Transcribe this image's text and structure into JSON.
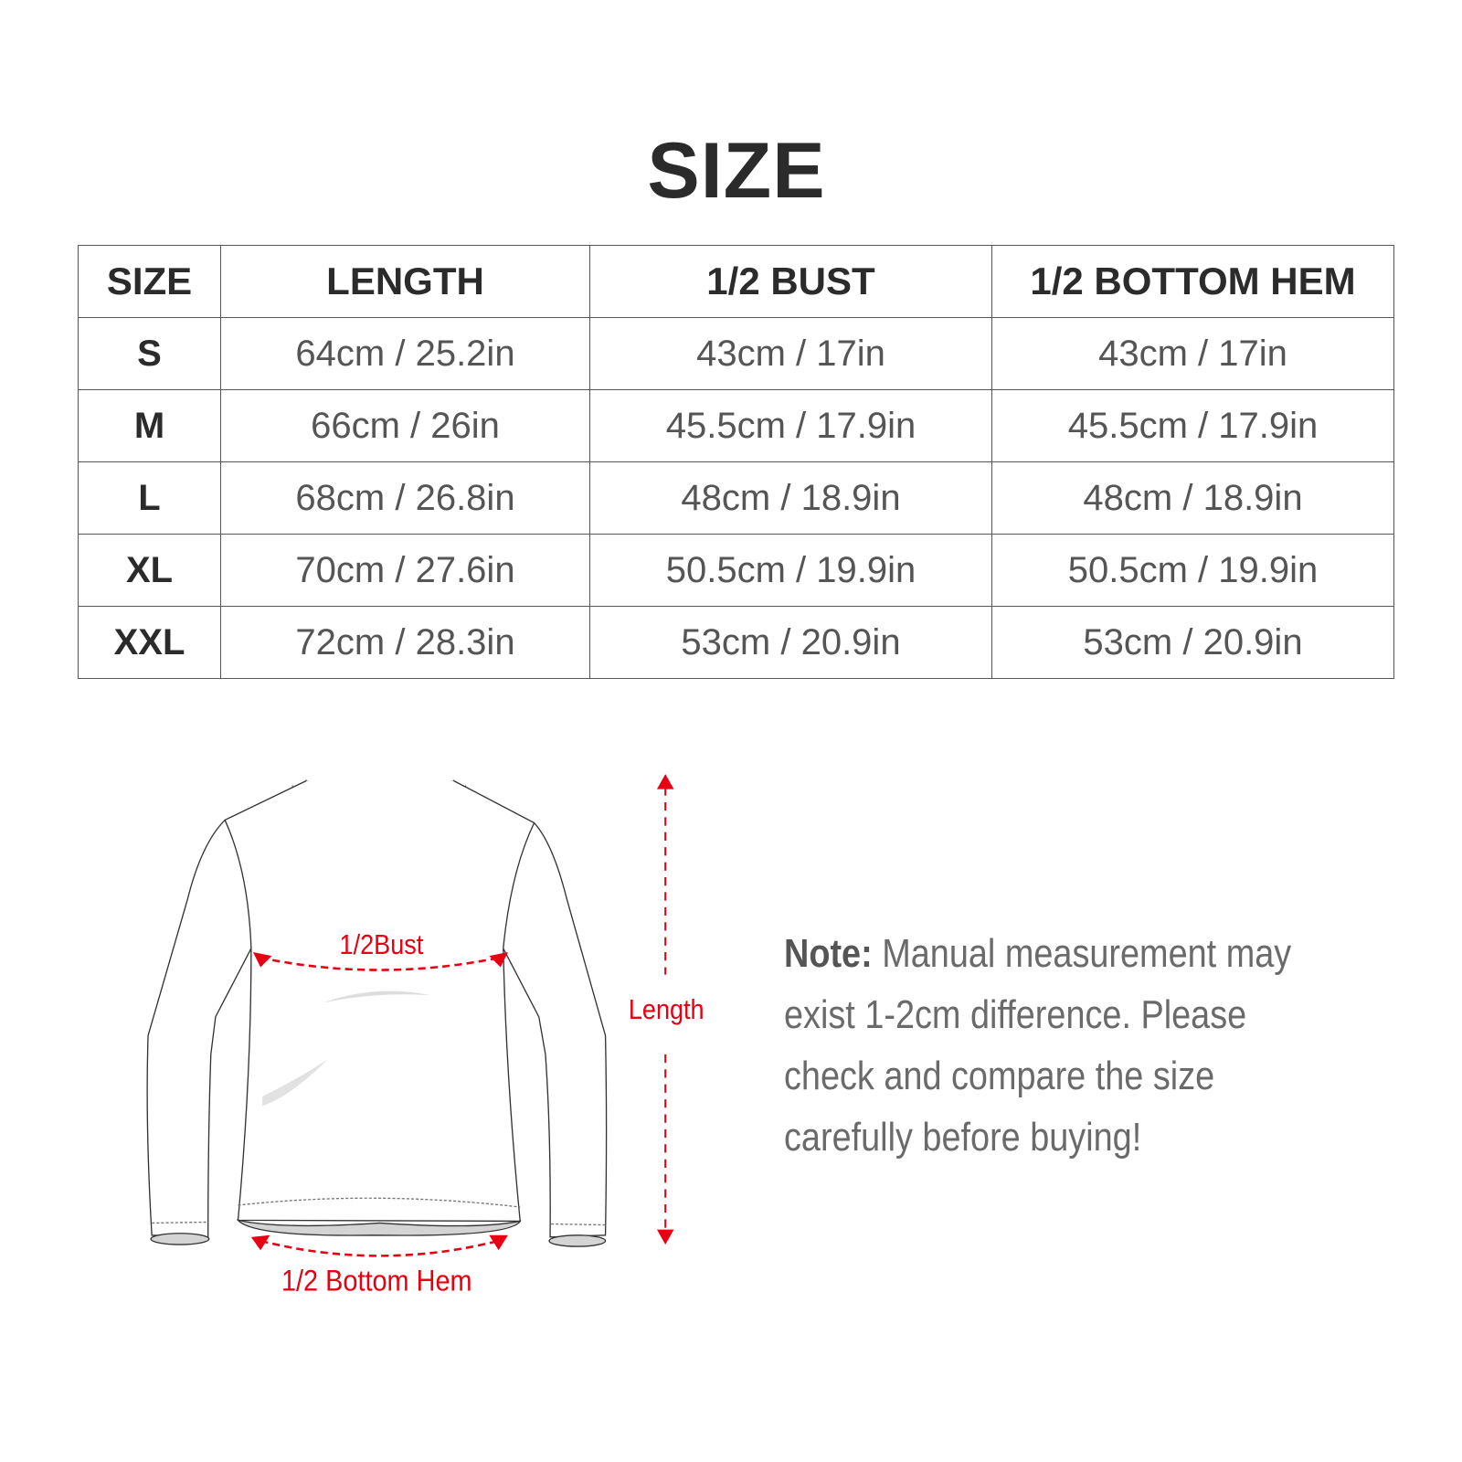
{
  "title": "SIZE",
  "table": {
    "headers": [
      "SIZE",
      "LENGTH",
      "1/2 BUST",
      "1/2 BOTTOM HEM"
    ],
    "rows": [
      [
        "S",
        "64cm / 25.2in",
        "43cm / 17in",
        "43cm / 17in"
      ],
      [
        "M",
        "66cm / 26in",
        "45.5cm / 17.9in",
        "45.5cm / 17.9in"
      ],
      [
        "L",
        "68cm / 26.8in",
        "48cm / 18.9in",
        "48cm / 18.9in"
      ],
      [
        "XL",
        "70cm / 27.6in",
        "50.5cm / 19.9in",
        "50.5cm / 19.9in"
      ],
      [
        "XXL",
        "72cm / 28.3in",
        "53cm / 20.9in",
        "53cm / 20.9in"
      ]
    ]
  },
  "diagram": {
    "bust_label": "1/2Bust",
    "hem_label": "1/2 Bottom Hem",
    "length_label": "Length",
    "accent_color": "#e60012"
  },
  "note": {
    "label": "Note:",
    "text": " Manual measurement may exist 1-2cm difference. Please check and compare the size carefully before buying!"
  }
}
